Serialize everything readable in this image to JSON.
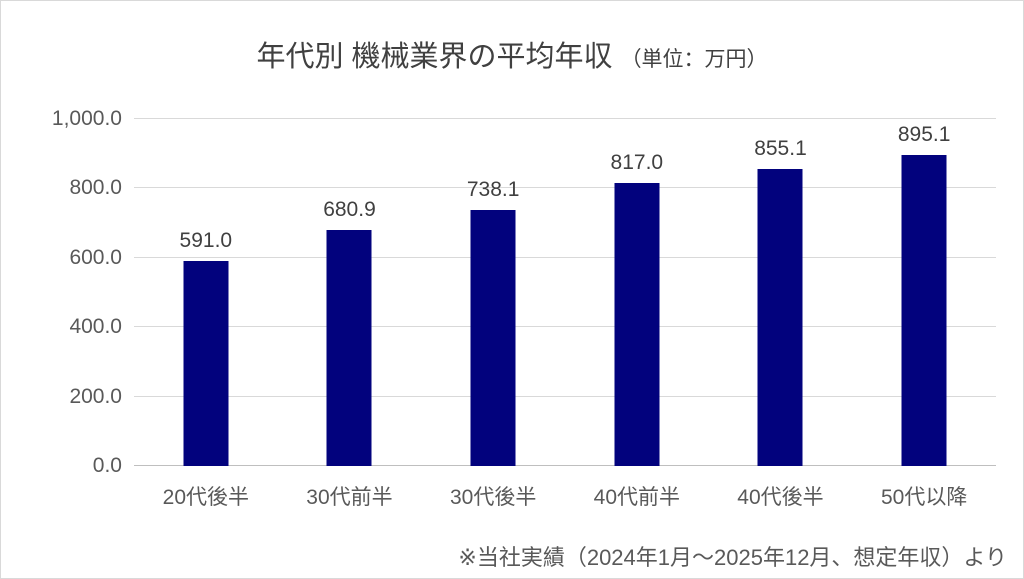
{
  "title": {
    "main": "年代別 機械業界の平均年収",
    "unit": "（単位：万円）"
  },
  "footnote": "※当社実績（2024年1月～2025年12月、想定年収）より",
  "colors": {
    "bar": "#02027d",
    "gridline": "#d9d9d9",
    "axis_line": "#bfbfbf",
    "title_text": "#404040",
    "tick_text": "#595959"
  },
  "chart_data": {
    "type": "bar",
    "title": "年代別 機械業界の平均年収（単位：万円）",
    "categories": [
      "20代後半",
      "30代前半",
      "30代後半",
      "40代前半",
      "40代後半",
      "50代以降"
    ],
    "values": [
      591.0,
      680.9,
      738.1,
      817.0,
      855.1,
      895.1
    ],
    "value_labels": [
      "591.0",
      "680.9",
      "738.1",
      "817.0",
      "855.1",
      "895.1"
    ],
    "xlabel": "",
    "ylabel": "",
    "ylim": [
      0,
      1000
    ],
    "ytick_interval": 200,
    "ytick_labels": [
      "0.0",
      "200.0",
      "400.0",
      "600.0",
      "800.0",
      "1,000.0"
    ],
    "grid": true,
    "legend": false,
    "source_note": "※当社実績（2024年1月～2025年12月、想定年収）より"
  }
}
